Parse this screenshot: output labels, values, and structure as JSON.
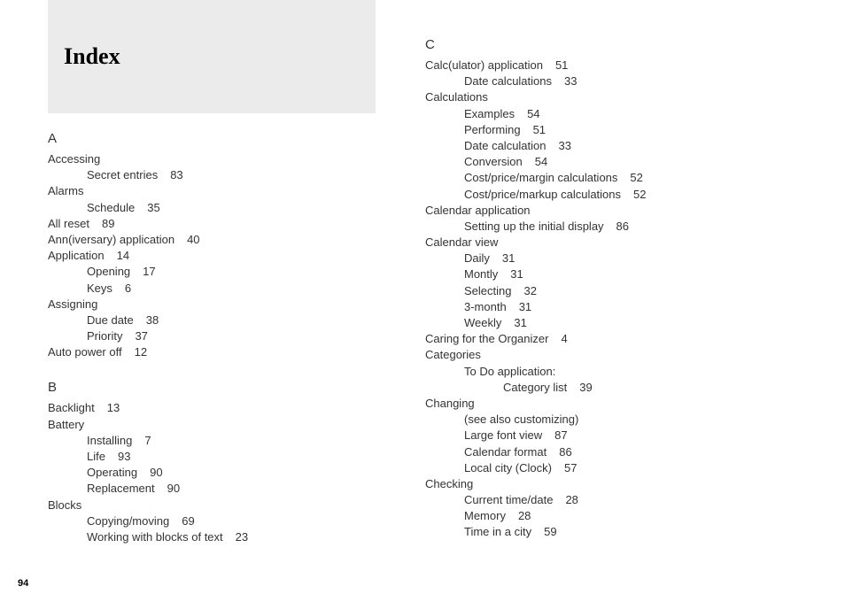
{
  "title": "Index",
  "page_number": "94",
  "colors": {
    "header_bg": "#ebebeb",
    "text": "#333333",
    "body_bg": "#ffffff"
  },
  "sections": {
    "A": {
      "letter": "A",
      "entries": [
        {
          "level": 0,
          "text": "Accessing",
          "page": ""
        },
        {
          "level": 1,
          "text": "Secret entries",
          "page": "83"
        },
        {
          "level": 0,
          "text": "Alarms",
          "page": ""
        },
        {
          "level": 1,
          "text": "Schedule",
          "page": "35"
        },
        {
          "level": 0,
          "text": "All reset",
          "page": "89"
        },
        {
          "level": 0,
          "text": "Ann(iversary) application",
          "page": "40"
        },
        {
          "level": 0,
          "text": "Application",
          "page": "14"
        },
        {
          "level": 1,
          "text": "Opening",
          "page": "17"
        },
        {
          "level": 1,
          "text": "Keys",
          "page": "6"
        },
        {
          "level": 0,
          "text": "Assigning",
          "page": ""
        },
        {
          "level": 1,
          "text": "Due date",
          "page": "38"
        },
        {
          "level": 1,
          "text": "Priority",
          "page": "37"
        },
        {
          "level": 0,
          "text": "Auto power off",
          "page": "12"
        }
      ]
    },
    "B": {
      "letter": "B",
      "entries": [
        {
          "level": 0,
          "text": "Backlight",
          "page": "13"
        },
        {
          "level": 0,
          "text": "Battery",
          "page": ""
        },
        {
          "level": 1,
          "text": "Installing",
          "page": "7"
        },
        {
          "level": 1,
          "text": "Life",
          "page": "93"
        },
        {
          "level": 1,
          "text": "Operating",
          "page": "90"
        },
        {
          "level": 1,
          "text": "Replacement",
          "page": "90"
        },
        {
          "level": 0,
          "text": "Blocks",
          "page": ""
        },
        {
          "level": 1,
          "text": "Copying/moving",
          "page": "69"
        },
        {
          "level": 1,
          "text": "Working with blocks of text",
          "page": "23"
        }
      ]
    },
    "C": {
      "letter": "C",
      "entries": [
        {
          "level": 0,
          "text": "Calc(ulator) application",
          "page": "51"
        },
        {
          "level": 1,
          "text": "Date calculations",
          "page": "33"
        },
        {
          "level": 0,
          "text": "Calculations",
          "page": ""
        },
        {
          "level": 1,
          "text": "Examples",
          "page": "54"
        },
        {
          "level": 1,
          "text": "Performing",
          "page": "51"
        },
        {
          "level": 1,
          "text": "Date calculation",
          "page": "33"
        },
        {
          "level": 1,
          "text": "Conversion",
          "page": "54"
        },
        {
          "level": 1,
          "text": "Cost/price/margin calculations",
          "page": "52"
        },
        {
          "level": 1,
          "text": "Cost/price/markup calculations",
          "page": "52"
        },
        {
          "level": 0,
          "text": "Calendar application",
          "page": ""
        },
        {
          "level": 1,
          "text": "Setting up the initial display",
          "page": "86"
        },
        {
          "level": 0,
          "text": "Calendar view",
          "page": ""
        },
        {
          "level": 1,
          "text": "Daily",
          "page": "31"
        },
        {
          "level": 1,
          "text": "Montly",
          "page": "31"
        },
        {
          "level": 1,
          "text": "Selecting",
          "page": "32"
        },
        {
          "level": 1,
          "text": "3-month",
          "page": "31"
        },
        {
          "level": 1,
          "text": "Weekly",
          "page": "31"
        },
        {
          "level": 0,
          "text": "Caring for the Organizer",
          "page": "4"
        },
        {
          "level": 0,
          "text": "Categories",
          "page": ""
        },
        {
          "level": 1,
          "text": "To Do application:",
          "page": ""
        },
        {
          "level": 2,
          "text": "Category list",
          "page": "39"
        },
        {
          "level": 0,
          "text": "Changing",
          "page": ""
        },
        {
          "level": 1,
          "text": "(see also customizing)",
          "page": ""
        },
        {
          "level": 1,
          "text": "Large font view",
          "page": "87"
        },
        {
          "level": 1,
          "text": "Calendar format",
          "page": "86"
        },
        {
          "level": 1,
          "text": "Local city (Clock)",
          "page": "57"
        },
        {
          "level": 0,
          "text": "Checking",
          "page": ""
        },
        {
          "level": 1,
          "text": "Current time/date",
          "page": "28"
        },
        {
          "level": 1,
          "text": "Memory",
          "page": "28"
        },
        {
          "level": 1,
          "text": "Time in a city",
          "page": "59"
        }
      ]
    }
  }
}
